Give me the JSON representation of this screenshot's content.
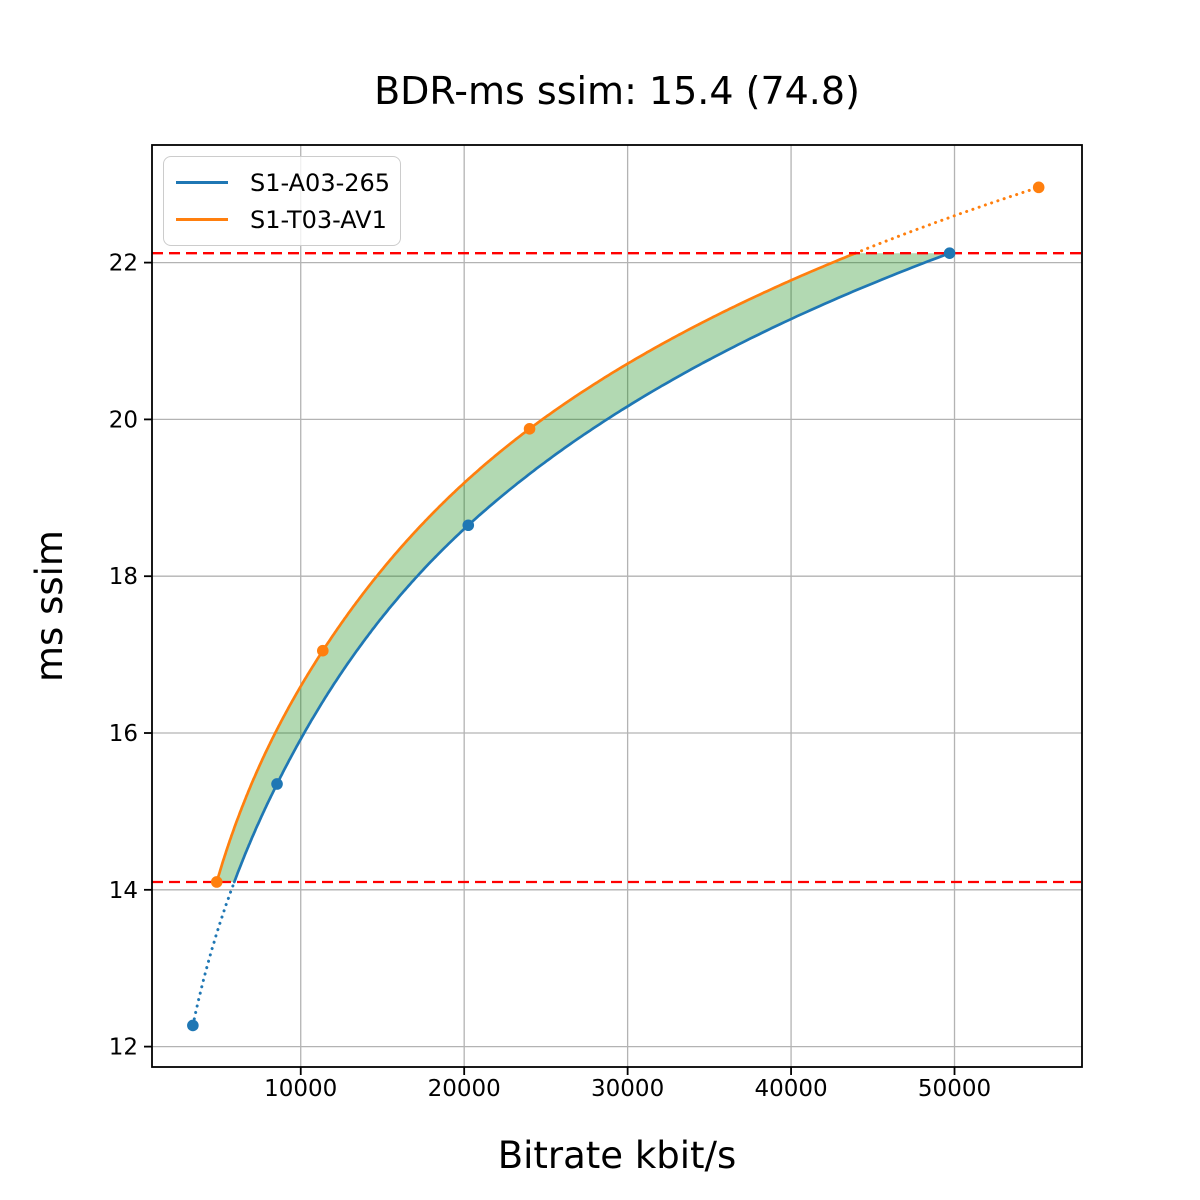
{
  "title": "BDR-ms ssim: 15.4 (74.8)",
  "chart_data": {
    "type": "line",
    "title": "BDR-ms ssim: 15.4 (74.8)",
    "xlabel": "Bitrate kbit/s",
    "ylabel": "ms ssim",
    "xlim": [
      900,
      57800
    ],
    "ylim": [
      11.74,
      23.5
    ],
    "xticks": [
      10000,
      20000,
      30000,
      40000,
      50000
    ],
    "yticks": [
      12,
      14,
      16,
      18,
      20,
      22
    ],
    "grid": true,
    "legend_position": "upper-left",
    "interpolation": "pchip-log-x",
    "series": [
      {
        "name": "S1-A03-265",
        "color": "#1f77b4",
        "points": [
          [
            3400,
            12.27
          ],
          [
            8550,
            15.35
          ],
          [
            20250,
            18.65
          ],
          [
            49700,
            22.12
          ]
        ]
      },
      {
        "name": "S1-T03-AV1",
        "color": "#ff7f0e",
        "points": [
          [
            4860,
            14.1
          ],
          [
            11350,
            17.05
          ],
          [
            24000,
            19.88
          ],
          [
            55150,
            22.96
          ]
        ]
      }
    ],
    "hlines": [
      {
        "y": 14.1,
        "color": "#ff0000",
        "style": "dashed"
      },
      {
        "y": 22.12,
        "color": "#ff0000",
        "style": "dashed"
      }
    ],
    "fill_between": {
      "lower_bound": 14.1,
      "upper_bound": 22.12,
      "color": "rgba(0,128,0,0.3)"
    }
  },
  "legend": {
    "items": [
      {
        "label": "S1-A03-265",
        "color": "#1f77b4"
      },
      {
        "label": "S1-T03-AV1",
        "color": "#ff7f0e"
      }
    ]
  },
  "colors": {
    "background": "#ffffff",
    "grid": "#b3b3b3",
    "spine": "#000000",
    "text": "#000000",
    "legend_border": "#cccccc"
  }
}
